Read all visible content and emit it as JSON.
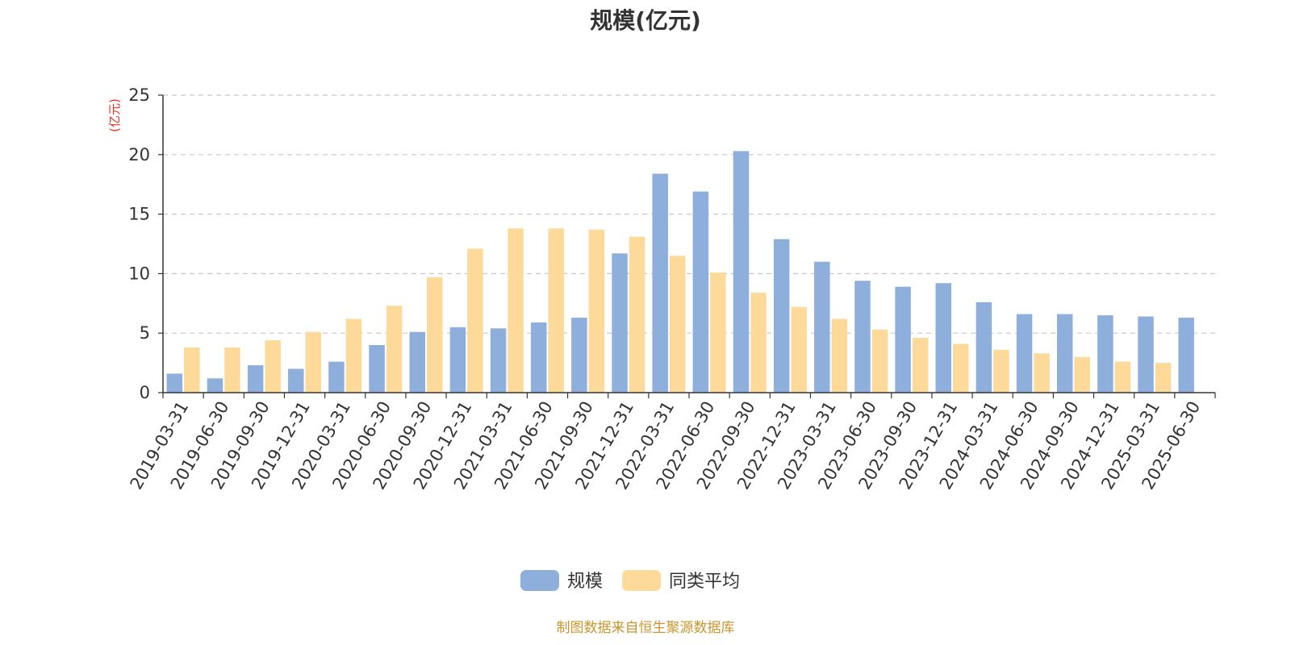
{
  "chart_data": {
    "type": "bar",
    "title": "规模(亿元)",
    "ylabel": "(亿元)",
    "ylim": [
      0,
      25
    ],
    "yticks": [
      0,
      5,
      10,
      15,
      20,
      25
    ],
    "grid": "horizontal-dashed",
    "legend_position": "bottom-center",
    "categories": [
      "2019-03-31",
      "2019-06-30",
      "2019-09-30",
      "2019-12-31",
      "2020-03-31",
      "2020-06-30",
      "2020-09-30",
      "2020-12-31",
      "2021-03-31",
      "2021-06-30",
      "2021-09-30",
      "2021-12-31",
      "2022-03-31",
      "2022-06-30",
      "2022-09-30",
      "2022-12-31",
      "2023-03-31",
      "2023-06-30",
      "2023-09-30",
      "2023-12-31",
      "2024-03-31",
      "2024-06-30",
      "2024-09-30",
      "2024-12-31",
      "2025-03-31",
      "2025-06-30"
    ],
    "series": [
      {
        "name": "规模",
        "color": "#8eaedb",
        "values": [
          1.6,
          1.2,
          2.3,
          2.0,
          2.6,
          4.0,
          5.1,
          5.5,
          5.4,
          5.9,
          6.3,
          11.7,
          18.4,
          16.9,
          20.3,
          12.9,
          11.0,
          9.4,
          8.9,
          9.2,
          7.6,
          6.6,
          6.6,
          6.5,
          6.4,
          6.3
        ]
      },
      {
        "name": "同类平均",
        "color": "#fdd99a",
        "values": [
          3.8,
          3.8,
          4.4,
          5.1,
          6.2,
          7.3,
          9.7,
          12.1,
          13.8,
          13.8,
          13.7,
          13.1,
          11.5,
          10.1,
          8.4,
          7.2,
          6.2,
          5.3,
          4.6,
          4.1,
          3.6,
          3.3,
          3.0,
          2.6,
          2.5,
          null
        ]
      }
    ]
  },
  "ylabel_color": "#e8311f",
  "footer": {
    "text": "制图数据来自恒生聚源数据库",
    "color": "#c8962d"
  }
}
